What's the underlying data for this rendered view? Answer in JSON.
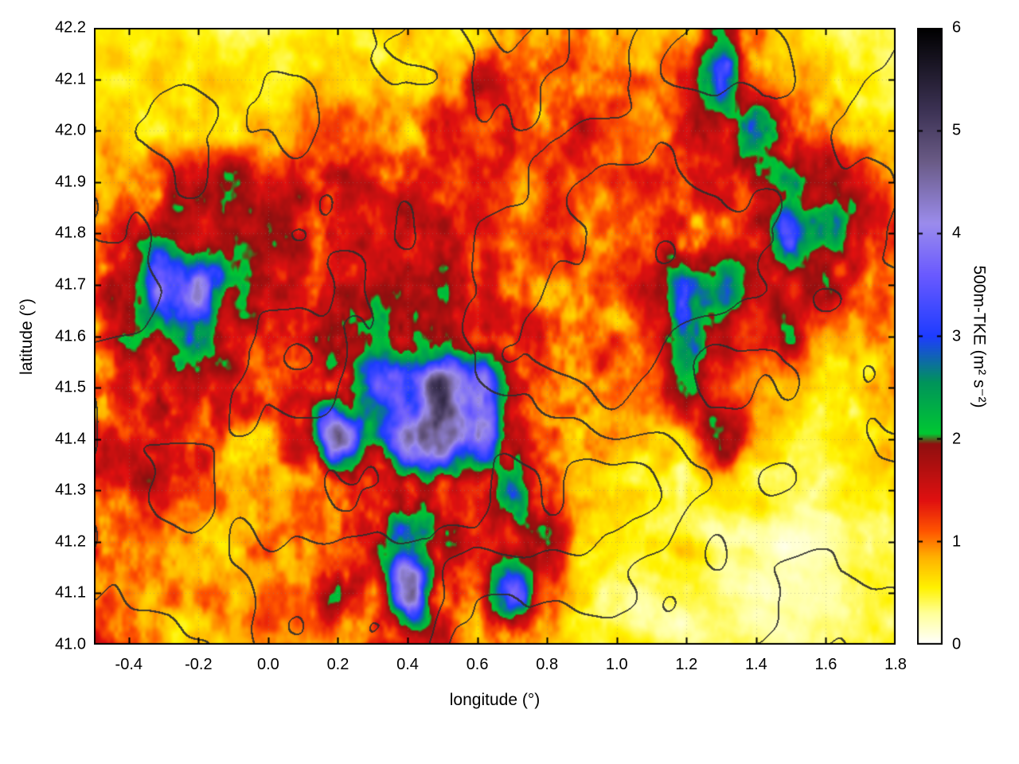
{
  "figure": {
    "background": "#ffffff",
    "axis_color": "#000000",
    "contour_color": "#2d2d2d"
  },
  "chart_data": {
    "type": "heatmap",
    "title": "",
    "xlabel": "longitude (°)",
    "ylabel": "latitude (°)",
    "xlim": [
      -0.5,
      1.8
    ],
    "ylim": [
      41.0,
      42.2
    ],
    "x_ticks": [
      -0.4,
      -0.2,
      0.0,
      0.2,
      0.4,
      0.6,
      0.8,
      1.0,
      1.2,
      1.4,
      1.6,
      1.8
    ],
    "x_tick_labels": [
      "-0.4",
      "-0.2",
      "0.0",
      "0.2",
      "0.4",
      "0.6",
      "0.8",
      "1.0",
      "1.2",
      "1.4",
      "1.6",
      "1.8"
    ],
    "y_ticks": [
      41.0,
      41.1,
      41.2,
      41.3,
      41.4,
      41.5,
      41.6,
      41.7,
      41.8,
      41.9,
      42.0,
      42.1,
      42.2
    ],
    "y_tick_labels": [
      "41.0",
      "41.1",
      "41.2",
      "41.3",
      "41.4",
      "41.5",
      "41.6",
      "41.7",
      "41.8",
      "41.9",
      "42.0",
      "42.1",
      "42.2"
    ],
    "grid_lines": true,
    "legend": "none",
    "colorbar": {
      "label": "500m-TKE (m² s⁻²)",
      "min": 0,
      "max": 6,
      "ticks": [
        0,
        1,
        2,
        3,
        4,
        5,
        6
      ],
      "tick_labels": [
        "0",
        "1",
        "2",
        "3",
        "4",
        "5",
        "6"
      ],
      "colormap_stops": [
        [
          0.0,
          "#ffffff"
        ],
        [
          0.3,
          "#ffff99"
        ],
        [
          0.55,
          "#fff200"
        ],
        [
          0.85,
          "#ffb000"
        ],
        [
          1.1,
          "#ff5500"
        ],
        [
          1.4,
          "#e01010"
        ],
        [
          1.95,
          "#8f0f0f"
        ],
        [
          2.05,
          "#00c832"
        ],
        [
          2.55,
          "#00945a"
        ],
        [
          3.0,
          "#1e3cff"
        ],
        [
          3.6,
          "#6a5aff"
        ],
        [
          4.1,
          "#9b8cec"
        ],
        [
          4.7,
          "#6a5b86"
        ],
        [
          5.2,
          "#3c3254"
        ],
        [
          6.0,
          "#000000"
        ]
      ]
    },
    "overlay": {
      "type": "terrain-contours",
      "description": "dark gray topographic contour lines over the TKE field",
      "color": "#2d2d2d"
    },
    "grid": {
      "units": "m2 s-2, 500m-TKE, coarse estimate read from colors",
      "lon": [
        -0.5,
        -0.4,
        -0.3,
        -0.2,
        -0.1,
        0.0,
        0.1,
        0.2,
        0.3,
        0.4,
        0.5,
        0.6,
        0.7,
        0.8,
        0.9,
        1.0,
        1.1,
        1.2,
        1.3,
        1.4,
        1.5,
        1.6,
        1.7,
        1.8
      ],
      "lat": [
        41.0,
        41.1,
        41.2,
        41.3,
        41.4,
        41.5,
        41.6,
        41.7,
        41.8,
        41.9,
        42.0,
        42.1,
        42.2
      ],
      "values_rows_lat_ascending": [
        [
          1.2,
          1.0,
          0.8,
          0.8,
          0.8,
          0.7,
          0.8,
          0.8,
          1.2,
          1.5,
          1.3,
          1.0,
          1.3,
          0.8,
          0.5,
          0.4,
          0.4,
          0.4,
          0.4,
          0.3,
          0.3,
          0.4,
          0.4,
          0.5
        ],
        [
          1.3,
          1.0,
          0.9,
          0.9,
          0.8,
          1.0,
          1.0,
          1.9,
          1.3,
          4.5,
          1.5,
          1.2,
          3.5,
          1.0,
          0.6,
          0.5,
          0.4,
          0.4,
          0.4,
          0.3,
          0.3,
          0.3,
          0.4,
          0.5
        ],
        [
          1.4,
          1.2,
          1.0,
          1.0,
          0.9,
          1.0,
          1.0,
          1.2,
          1.5,
          3.0,
          2.5,
          1.3,
          1.0,
          2.0,
          0.7,
          0.6,
          0.5,
          0.5,
          0.4,
          0.4,
          0.3,
          0.3,
          0.4,
          0.5
        ],
        [
          1.4,
          1.3,
          1.3,
          1.2,
          1.0,
          1.0,
          1.1,
          1.3,
          1.5,
          2.0,
          1.5,
          1.3,
          3.0,
          1.2,
          0.8,
          0.7,
          0.6,
          0.6,
          0.5,
          0.5,
          0.4,
          0.4,
          0.5,
          0.6
        ],
        [
          1.4,
          1.4,
          1.4,
          1.4,
          1.3,
          1.2,
          1.4,
          4.5,
          2.5,
          5.5,
          4.5,
          4.0,
          1.5,
          1.2,
          1.0,
          0.9,
          0.8,
          0.8,
          1.9,
          0.8,
          0.6,
          0.5,
          0.6,
          0.8
        ],
        [
          1.5,
          1.5,
          1.9,
          1.5,
          1.4,
          1.4,
          1.4,
          1.5,
          2.5,
          3.5,
          4.5,
          3.5,
          1.5,
          1.3,
          1.1,
          1.0,
          0.9,
          1.8,
          1.0,
          0.8,
          0.7,
          0.6,
          0.7,
          0.9
        ],
        [
          1.5,
          1.8,
          2.0,
          2.2,
          1.6,
          1.5,
          1.5,
          2.0,
          2.2,
          1.8,
          1.5,
          1.4,
          1.3,
          1.5,
          1.2,
          1.1,
          1.0,
          2.2,
          1.5,
          1.0,
          1.5,
          0.8,
          0.8,
          1.0
        ],
        [
          1.4,
          1.6,
          3.5,
          4.0,
          2.0,
          1.5,
          1.5,
          1.5,
          1.5,
          1.4,
          1.5,
          1.4,
          1.2,
          1.1,
          1.2,
          1.3,
          1.5,
          3.0,
          2.0,
          1.3,
          1.2,
          1.5,
          1.2,
          1.0
        ],
        [
          1.2,
          1.4,
          1.5,
          1.5,
          1.5,
          1.5,
          1.5,
          1.5,
          1.5,
          1.5,
          1.4,
          1.3,
          1.2,
          1.1,
          1.1,
          1.2,
          1.3,
          1.5,
          1.3,
          1.5,
          2.5,
          2.0,
          1.5,
          1.2
        ],
        [
          0.8,
          1.0,
          1.2,
          1.5,
          1.8,
          1.3,
          1.4,
          1.5,
          1.5,
          1.4,
          1.3,
          1.2,
          1.0,
          1.0,
          1.0,
          1.0,
          1.2,
          1.4,
          1.3,
          1.5,
          2.0,
          1.5,
          1.3,
          1.0
        ],
        [
          0.6,
          0.7,
          0.8,
          0.8,
          0.8,
          0.8,
          0.9,
          1.0,
          1.0,
          0.9,
          1.3,
          1.0,
          1.2,
          1.1,
          1.3,
          0.9,
          0.8,
          1.5,
          1.4,
          2.5,
          1.5,
          1.0,
          0.8,
          0.6
        ],
        [
          0.5,
          0.5,
          0.6,
          0.6,
          0.6,
          0.6,
          0.7,
          0.7,
          0.7,
          0.8,
          0.8,
          1.5,
          1.3,
          1.2,
          1.0,
          1.1,
          0.9,
          1.0,
          3.0,
          1.0,
          0.8,
          0.7,
          0.5,
          0.4
        ],
        [
          0.4,
          0.4,
          0.5,
          0.5,
          0.5,
          0.5,
          0.5,
          0.6,
          0.6,
          0.7,
          0.6,
          0.7,
          0.8,
          0.9,
          1.0,
          0.8,
          0.7,
          0.8,
          1.9,
          0.8,
          0.6,
          0.5,
          0.5,
          0.4
        ]
      ]
    }
  }
}
